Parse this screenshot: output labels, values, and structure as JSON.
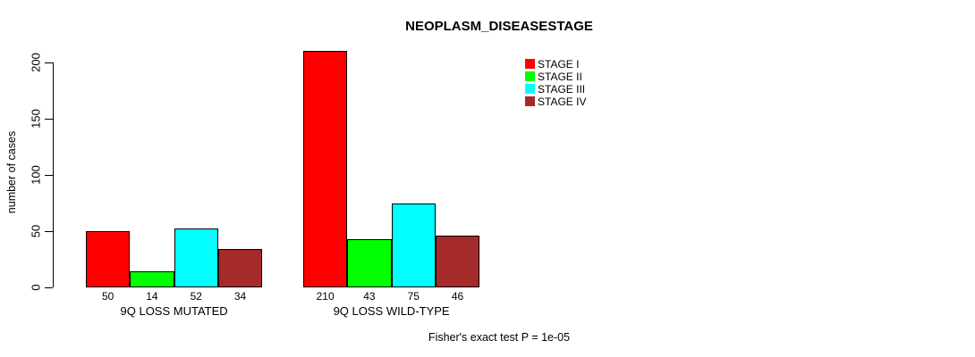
{
  "chart_data": {
    "type": "bar",
    "title": "NEOPLASM_DISEASESTAGE",
    "ylabel": "number of cases",
    "yticks": [
      0,
      50,
      100,
      150,
      200
    ],
    "ylim": [
      0,
      210
    ],
    "grid": false,
    "legend_position": "top-right",
    "series": [
      {
        "name": "STAGE I",
        "color": "#FF0000"
      },
      {
        "name": "STAGE II",
        "color": "#00FF00"
      },
      {
        "name": "STAGE III",
        "color": "#00FFFF"
      },
      {
        "name": "STAGE IV",
        "color": "#A52A2A"
      }
    ],
    "groups": [
      {
        "label": "9Q LOSS MUTATED",
        "values": [
          50,
          14,
          52,
          34
        ]
      },
      {
        "label": "9Q LOSS WILD-TYPE",
        "values": [
          210,
          43,
          75,
          46
        ]
      }
    ],
    "annotation": "Fisher's exact test P = 1e-05"
  }
}
